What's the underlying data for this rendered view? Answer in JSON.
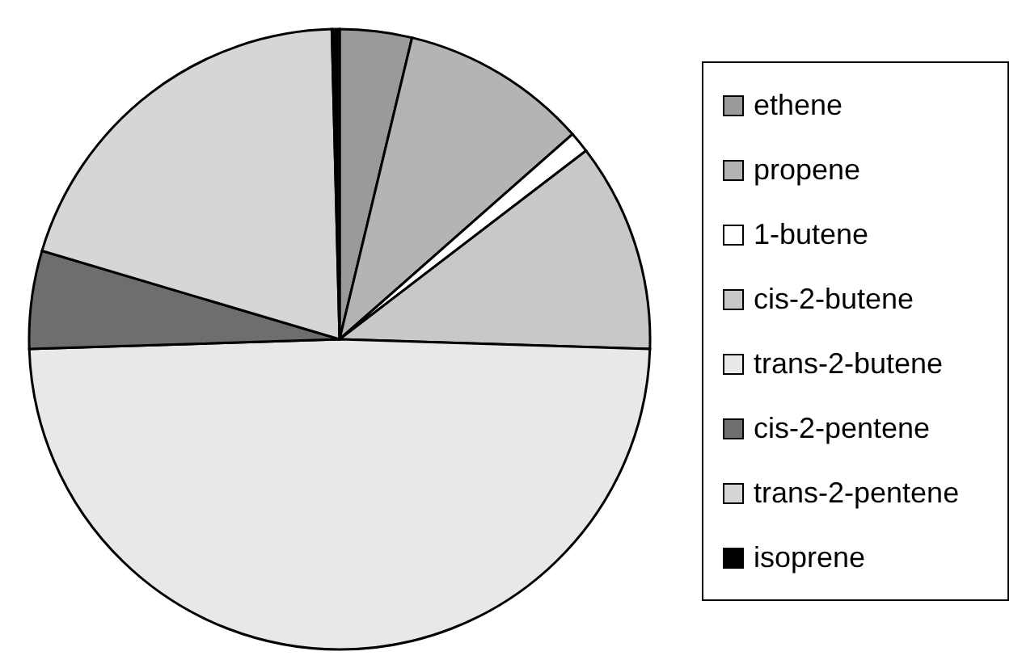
{
  "chart_data": {
    "type": "pie",
    "categories": [
      "ethene",
      "propene",
      "1-butene",
      "cis-2-butene",
      "trans-2-butene",
      "cis-2-pentene",
      "trans-2-pentene",
      "isoprene"
    ],
    "values": [
      3.75,
      9.75,
      1.1,
      10.9,
      49.0,
      5.1,
      20.0,
      0.4
    ],
    "colors": [
      "#9a9a9a",
      "#b4b4b4",
      "#ffffff",
      "#c8c8c8",
      "#e8e8e8",
      "#6e6e6e",
      "#d6d6d6",
      "#000000"
    ],
    "legend": "right"
  }
}
